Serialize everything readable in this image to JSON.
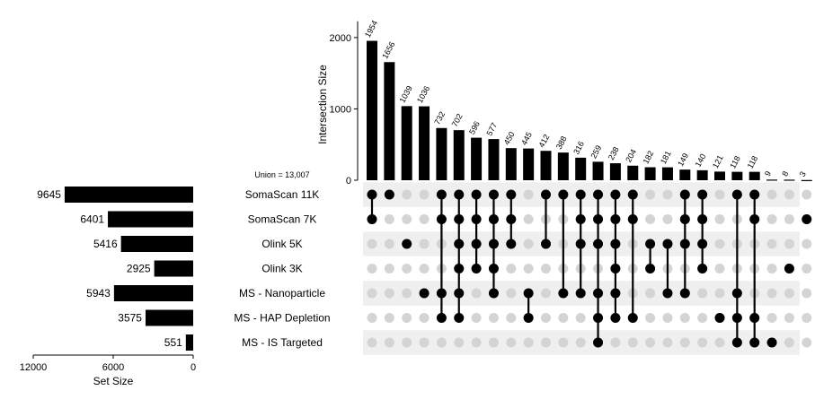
{
  "chart_data": {
    "type": "upset",
    "union_label": "Union = 13,007",
    "sets": [
      {
        "name": "SomaScan 11K",
        "size": 9645
      },
      {
        "name": "SomaScan 7K",
        "size": 6401
      },
      {
        "name": "Olink 5K",
        "size": 5416
      },
      {
        "name": "Olink 3K",
        "size": 2925
      },
      {
        "name": "MS - Nanoparticle",
        "size": 5943
      },
      {
        "name": "MS - HAP Depletion",
        "size": 3575
      },
      {
        "name": "MS - IS Targeted",
        "size": 551
      }
    ],
    "intersections": [
      {
        "size": 1954,
        "sets": [
          0,
          1
        ]
      },
      {
        "size": 1656,
        "sets": [
          0
        ]
      },
      {
        "size": 1039,
        "sets": [
          2
        ]
      },
      {
        "size": 1036,
        "sets": [
          4
        ]
      },
      {
        "size": 732,
        "sets": [
          0,
          1,
          4,
          5
        ]
      },
      {
        "size": 702,
        "sets": [
          0,
          1,
          2,
          3,
          4,
          5
        ]
      },
      {
        "size": 596,
        "sets": [
          0,
          1,
          2,
          3
        ]
      },
      {
        "size": 577,
        "sets": [
          0,
          1,
          2,
          3,
          4
        ]
      },
      {
        "size": 450,
        "sets": [
          0,
          1,
          2
        ]
      },
      {
        "size": 445,
        "sets": [
          4,
          5
        ]
      },
      {
        "size": 412,
        "sets": [
          0,
          2
        ]
      },
      {
        "size": 388,
        "sets": [
          0,
          4
        ]
      },
      {
        "size": 316,
        "sets": [
          0,
          1,
          2,
          4
        ]
      },
      {
        "size": 259,
        "sets": [
          0,
          1,
          2,
          4,
          5,
          6
        ]
      },
      {
        "size": 238,
        "sets": [
          0,
          1,
          2,
          3,
          4,
          5
        ]
      },
      {
        "size": 204,
        "sets": [
          0,
          1,
          5
        ]
      },
      {
        "size": 182,
        "sets": [
          2,
          3
        ]
      },
      {
        "size": 181,
        "sets": [
          2,
          4
        ]
      },
      {
        "size": 149,
        "sets": [
          0,
          1,
          2,
          4
        ]
      },
      {
        "size": 140,
        "sets": [
          0,
          1,
          2,
          3
        ]
      },
      {
        "size": 121,
        "sets": [
          5
        ]
      },
      {
        "size": 118,
        "sets": [
          0,
          4,
          5,
          6
        ]
      },
      {
        "size": 118,
        "sets": [
          0,
          1,
          5,
          6
        ]
      },
      {
        "size": 9,
        "sets": [
          6
        ]
      },
      {
        "size": 8,
        "sets": [
          3
        ]
      },
      {
        "size": 3,
        "sets": [
          1
        ]
      }
    ],
    "intersection_axis": {
      "title": "Intersection Size",
      "ylim": [
        0,
        2250
      ],
      "ticks": [
        0,
        1000,
        2000
      ]
    },
    "set_size_axis": {
      "title": "Set Size",
      "xlim": [
        0,
        12000
      ],
      "ticks": [
        12000,
        6000,
        0
      ]
    }
  },
  "colors": {
    "bar": "#000000",
    "dot_on": "#000000",
    "dot_off": "#d4d4d4",
    "row_shade": "#efefef"
  }
}
